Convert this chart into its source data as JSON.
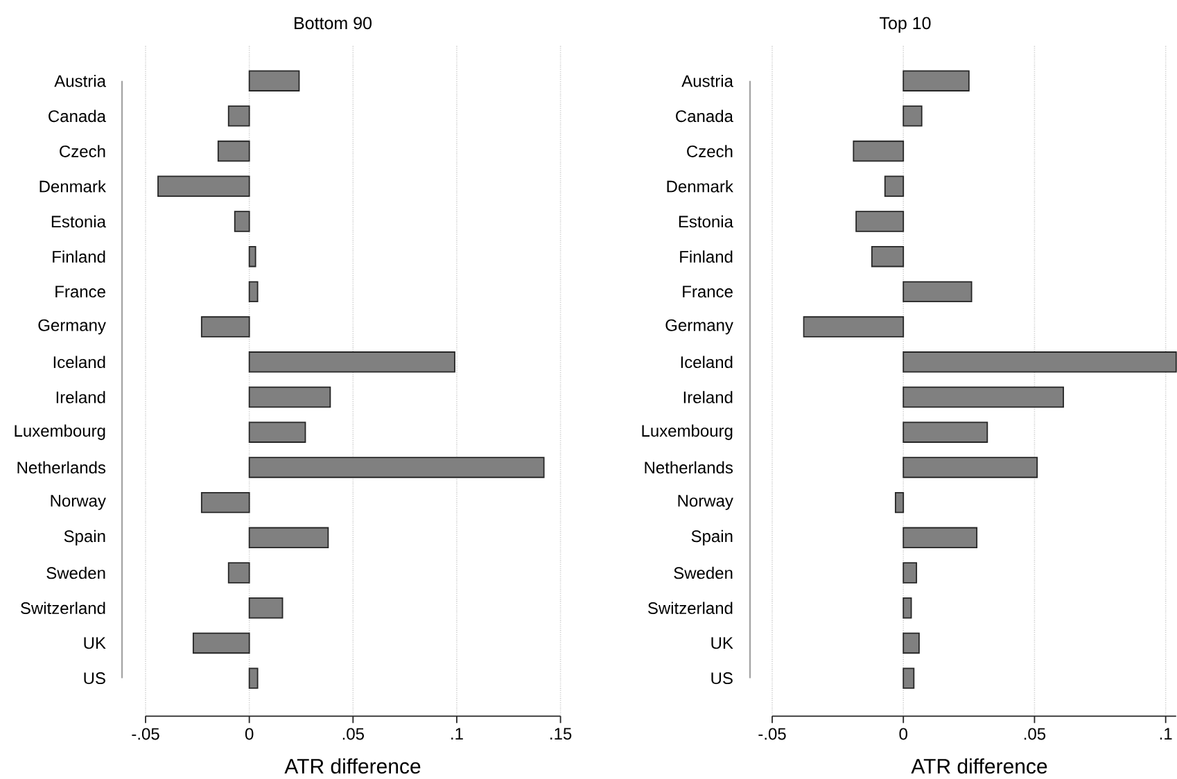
{
  "chart_data": [
    {
      "type": "bar",
      "orientation": "horizontal",
      "title": "Bottom 90",
      "xlabel": "ATR difference",
      "categories": [
        "Austria",
        "Canada",
        "Czech",
        "Denmark",
        "Estonia",
        "Finland",
        "France",
        "Germany",
        "Iceland",
        "Ireland",
        "Luxembourg",
        "Netherlands",
        "Norway",
        "Spain",
        "Sweden",
        "Switzerland",
        "UK",
        "US"
      ],
      "values": [
        0.024,
        -0.01,
        -0.015,
        -0.044,
        -0.007,
        0.003,
        0.004,
        -0.023,
        0.099,
        0.039,
        0.027,
        0.142,
        -0.023,
        0.038,
        -0.01,
        0.016,
        -0.027,
        0.004
      ],
      "color": "#808080",
      "xlim": [
        -0.05,
        0.15
      ],
      "xticks": [
        {
          "value": -0.05,
          "label": "-.05"
        },
        0,
        {
          "value": 0.05,
          "label": ".05"
        },
        {
          "value": 0.1,
          "label": ".1"
        },
        {
          "value": 0.15,
          "label": ".15"
        }
      ],
      "grid": "x"
    },
    {
      "type": "bar",
      "orientation": "horizontal",
      "title": "Top 10",
      "xlabel": "ATR difference",
      "categories": [
        "Austria",
        "Canada",
        "Czech",
        "Denmark",
        "Estonia",
        "Finland",
        "France",
        "Germany",
        "Iceland",
        "Ireland",
        "Luxembourg",
        "Netherlands",
        "Norway",
        "Spain",
        "Sweden",
        "Switzerland",
        "UK",
        "US"
      ],
      "values": [
        0.025,
        0.007,
        -0.019,
        -0.007,
        -0.018,
        -0.012,
        0.026,
        -0.038,
        0.104,
        0.061,
        0.032,
        0.051,
        -0.003,
        0.028,
        0.005,
        0.003,
        0.006,
        0.004
      ],
      "color": "#808080",
      "xlim": [
        -0.05,
        0.104
      ],
      "xticks": [
        {
          "value": -0.05,
          "label": "-.05"
        },
        0,
        {
          "value": 0.05,
          "label": ".05"
        },
        {
          "value": 0.1,
          "label": ".1"
        }
      ],
      "grid": "x"
    }
  ]
}
